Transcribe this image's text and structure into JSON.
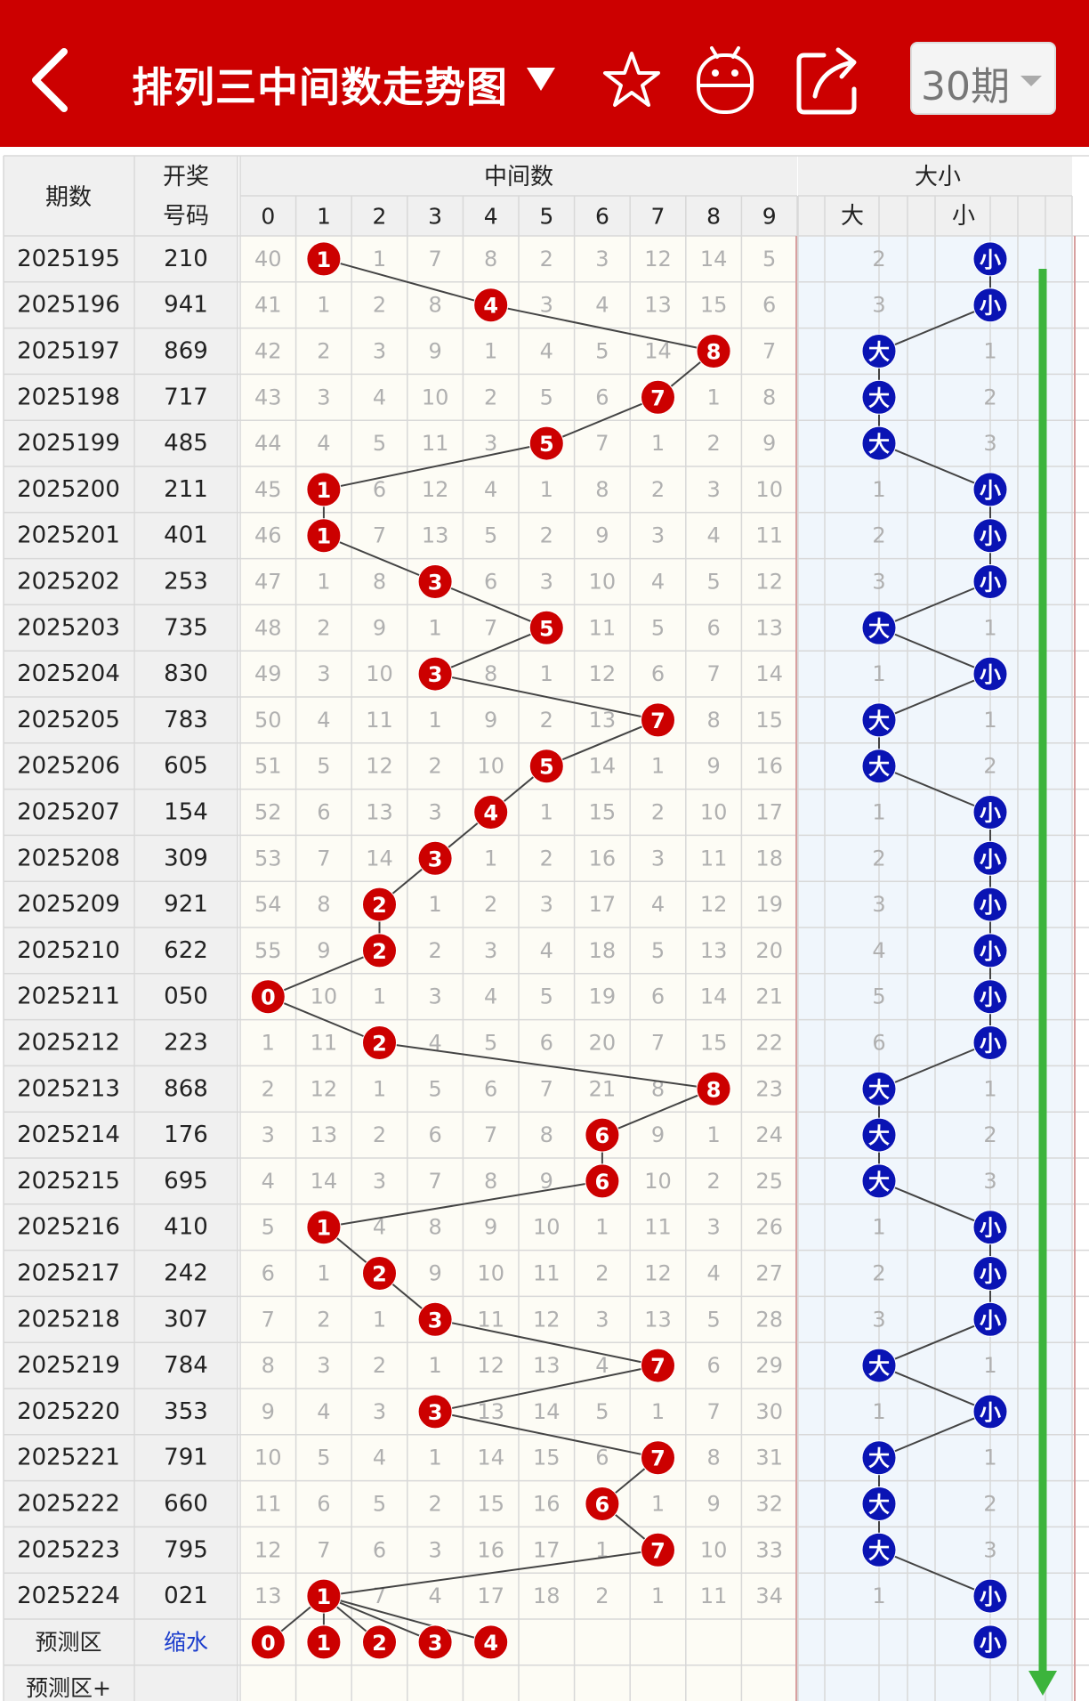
{
  "header": {
    "title": "排列三中间数走势图",
    "period_label": "30期",
    "icons": [
      "back-arrow-icon",
      "dropdown-triangle-icon",
      "star-icon",
      "android-icon",
      "share-icon",
      "chevron-down-icon"
    ],
    "bg_color": "#cc0000"
  },
  "table": {
    "col_issue": "期数",
    "col_draw": "开奖号码",
    "group_mid": "中间数",
    "group_size": "大小",
    "mid_digits": [
      "0",
      "1",
      "2",
      "3",
      "4",
      "5",
      "6",
      "7",
      "8",
      "9"
    ],
    "big_label": "大",
    "small_label": "小",
    "rows": [
      {
        "issue": "2025195",
        "draw": "210",
        "mid": 1,
        "miss": [
          40,
          null,
          1,
          7,
          8,
          2,
          3,
          12,
          14,
          5
        ],
        "size": "small",
        "miss_big": 2
      },
      {
        "issue": "2025196",
        "draw": "941",
        "mid": 4,
        "miss": [
          41,
          1,
          2,
          8,
          null,
          3,
          4,
          13,
          15,
          6
        ],
        "size": "small",
        "miss_big": 3
      },
      {
        "issue": "2025197",
        "draw": "869",
        "mid": 8,
        "miss": [
          42,
          2,
          3,
          9,
          1,
          4,
          5,
          14,
          null,
          7
        ],
        "size": "big",
        "miss_small": 1
      },
      {
        "issue": "2025198",
        "draw": "717",
        "mid": 7,
        "miss": [
          43,
          3,
          4,
          10,
          2,
          5,
          6,
          null,
          1,
          8
        ],
        "size": "big",
        "miss_small": 2
      },
      {
        "issue": "2025199",
        "draw": "485",
        "mid": 5,
        "miss": [
          44,
          4,
          5,
          11,
          3,
          null,
          7,
          1,
          2,
          9
        ],
        "size": "big",
        "miss_small": 3
      },
      {
        "issue": "2025200",
        "draw": "211",
        "mid": 1,
        "miss": [
          45,
          null,
          6,
          12,
          4,
          1,
          8,
          2,
          3,
          10
        ],
        "size": "small",
        "miss_big": 1
      },
      {
        "issue": "2025201",
        "draw": "401",
        "mid": 1,
        "miss": [
          46,
          null,
          7,
          13,
          5,
          2,
          9,
          3,
          4,
          11
        ],
        "size": "small",
        "miss_big": 2
      },
      {
        "issue": "2025202",
        "draw": "253",
        "mid": 3,
        "miss": [
          47,
          1,
          8,
          null,
          6,
          3,
          10,
          4,
          5,
          12
        ],
        "size": "small",
        "miss_big": 3
      },
      {
        "issue": "2025203",
        "draw": "735",
        "mid": 5,
        "miss": [
          48,
          2,
          9,
          1,
          7,
          null,
          11,
          5,
          6,
          13
        ],
        "size": "big",
        "miss_small": 1
      },
      {
        "issue": "2025204",
        "draw": "830",
        "mid": 3,
        "miss": [
          49,
          3,
          10,
          null,
          8,
          1,
          12,
          6,
          7,
          14
        ],
        "size": "small",
        "miss_big": 1
      },
      {
        "issue": "2025205",
        "draw": "783",
        "mid": 7,
        "miss": [
          50,
          4,
          11,
          1,
          9,
          2,
          13,
          null,
          8,
          15
        ],
        "size": "big",
        "miss_small": 1
      },
      {
        "issue": "2025206",
        "draw": "605",
        "mid": 5,
        "miss": [
          51,
          5,
          12,
          2,
          10,
          null,
          14,
          1,
          9,
          16
        ],
        "size": "big",
        "miss_small": 2
      },
      {
        "issue": "2025207",
        "draw": "154",
        "mid": 4,
        "miss": [
          52,
          6,
          13,
          3,
          null,
          1,
          15,
          2,
          10,
          17
        ],
        "size": "small",
        "miss_big": 1
      },
      {
        "issue": "2025208",
        "draw": "309",
        "mid": 3,
        "miss": [
          53,
          7,
          14,
          null,
          1,
          2,
          16,
          3,
          11,
          18
        ],
        "size": "small",
        "miss_big": 2
      },
      {
        "issue": "2025209",
        "draw": "921",
        "mid": 2,
        "miss": [
          54,
          8,
          null,
          1,
          2,
          3,
          17,
          4,
          12,
          19
        ],
        "size": "small",
        "miss_big": 3
      },
      {
        "issue": "2025210",
        "draw": "622",
        "mid": 2,
        "miss": [
          55,
          9,
          null,
          2,
          3,
          4,
          18,
          5,
          13,
          20
        ],
        "size": "small",
        "miss_big": 4
      },
      {
        "issue": "2025211",
        "draw": "050",
        "mid": 0,
        "miss": [
          null,
          10,
          1,
          3,
          4,
          5,
          19,
          6,
          14,
          21
        ],
        "size": "small",
        "miss_big": 5
      },
      {
        "issue": "2025212",
        "draw": "223",
        "mid": 2,
        "miss": [
          1,
          11,
          null,
          4,
          5,
          6,
          20,
          7,
          15,
          22
        ],
        "size": "small",
        "miss_big": 6
      },
      {
        "issue": "2025213",
        "draw": "868",
        "mid": 8,
        "miss": [
          2,
          12,
          1,
          5,
          6,
          7,
          21,
          8,
          null,
          23
        ],
        "size": "big",
        "miss_small": 1
      },
      {
        "issue": "2025214",
        "draw": "176",
        "mid": 6,
        "miss": [
          3,
          13,
          2,
          6,
          7,
          8,
          null,
          9,
          1,
          24
        ],
        "size": "big",
        "miss_small": 2
      },
      {
        "issue": "2025215",
        "draw": "695",
        "mid": 6,
        "miss": [
          4,
          14,
          3,
          7,
          8,
          9,
          null,
          10,
          2,
          25
        ],
        "size": "big",
        "miss_small": 3
      },
      {
        "issue": "2025216",
        "draw": "410",
        "mid": 1,
        "miss": [
          5,
          null,
          4,
          8,
          9,
          10,
          1,
          11,
          3,
          26
        ],
        "size": "small",
        "miss_big": 1
      },
      {
        "issue": "2025217",
        "draw": "242",
        "mid": 2,
        "miss": [
          6,
          1,
          null,
          9,
          10,
          11,
          2,
          12,
          4,
          27
        ],
        "size": "small",
        "miss_big": 2
      },
      {
        "issue": "2025218",
        "draw": "307",
        "mid": 3,
        "miss": [
          7,
          2,
          1,
          null,
          11,
          12,
          3,
          13,
          5,
          28
        ],
        "size": "small",
        "miss_big": 3
      },
      {
        "issue": "2025219",
        "draw": "784",
        "mid": 7,
        "miss": [
          8,
          3,
          2,
          1,
          12,
          13,
          4,
          null,
          6,
          29
        ],
        "size": "big",
        "miss_small": 1
      },
      {
        "issue": "2025220",
        "draw": "353",
        "mid": 3,
        "miss": [
          9,
          4,
          3,
          null,
          13,
          14,
          5,
          1,
          7,
          30
        ],
        "size": "small",
        "miss_big": 1
      },
      {
        "issue": "2025221",
        "draw": "791",
        "mid": 7,
        "miss": [
          10,
          5,
          4,
          1,
          14,
          15,
          6,
          null,
          8,
          31
        ],
        "size": "big",
        "miss_small": 1
      },
      {
        "issue": "2025222",
        "draw": "660",
        "mid": 6,
        "miss": [
          11,
          6,
          5,
          2,
          15,
          16,
          null,
          1,
          9,
          32
        ],
        "size": "big",
        "miss_small": 2
      },
      {
        "issue": "2025223",
        "draw": "795",
        "mid": 7,
        "miss": [
          12,
          7,
          6,
          3,
          16,
          17,
          1,
          null,
          10,
          33
        ],
        "size": "big",
        "miss_small": 3
      },
      {
        "issue": "2025224",
        "draw": "021",
        "mid": 1,
        "miss": [
          13,
          null,
          7,
          4,
          17,
          18,
          2,
          1,
          11,
          34
        ],
        "size": "small",
        "miss_big": 1
      }
    ],
    "predict_row": {
      "label": "预测区",
      "draw": "缩水",
      "mids": [
        0,
        1,
        2,
        3,
        4
      ],
      "size": "small"
    },
    "predict_row2": {
      "label": "预测区+"
    }
  },
  "colors": {
    "hit": "#cc0000",
    "big_small_ball": "#0a14b4",
    "line": "#444444",
    "trend_arrow": "#3cb43c",
    "miss_text": "#b0b0b0"
  }
}
